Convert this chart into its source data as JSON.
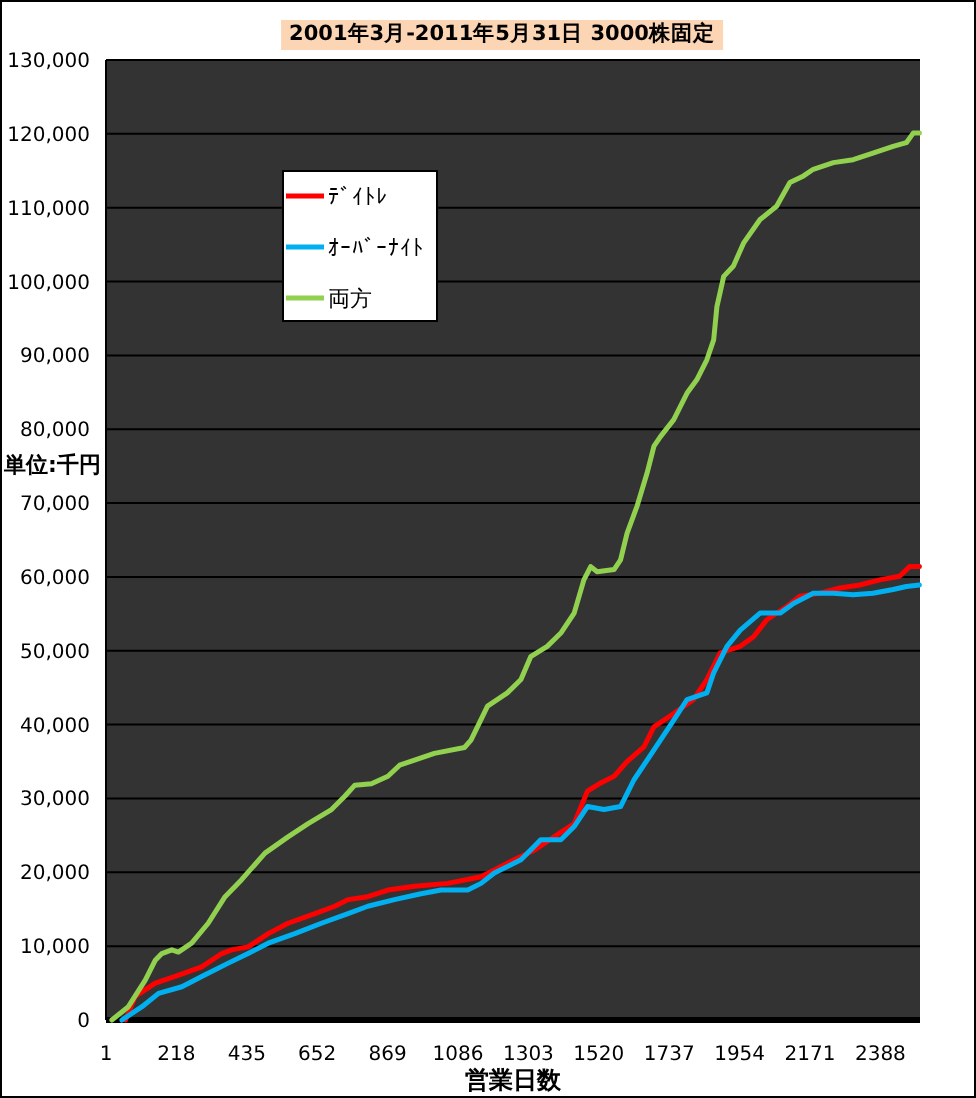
{
  "chart_data": {
    "type": "line",
    "title": "2001年3月-2011年5月31日 3000株固定",
    "xlabel": "営業日数",
    "ylabel": "単位:千円",
    "xlim": [
      1,
      2510
    ],
    "xticks": [
      1,
      218,
      435,
      652,
      869,
      1086,
      1303,
      1520,
      1737,
      1954,
      2171,
      2388
    ],
    "ylim": [
      0,
      130000
    ],
    "yticks": [
      0,
      {
        "value": 10000,
        "label": "10,000"
      },
      {
        "value": 20000,
        "label": "20,000"
      },
      {
        "value": 30000,
        "label": "30,000"
      },
      {
        "value": 40000,
        "label": "40,000"
      },
      {
        "value": 50000,
        "label": "50,000"
      },
      {
        "value": 60000,
        "label": "60,000"
      },
      {
        "value": 70000,
        "label": "70,000"
      },
      {
        "value": 80000,
        "label": "80,000"
      },
      {
        "value": 90000,
        "label": "90,000"
      },
      {
        "value": 100000,
        "label": "100,000"
      },
      {
        "value": 110000,
        "label": "110,000"
      },
      {
        "value": 120000,
        "label": "120,000"
      },
      {
        "value": 130000,
        "label": "130,000"
      }
    ],
    "grid": "y",
    "legend": "top left",
    "series": [
      {
        "name": "ﾃﾞｲﾄﾚ",
        "color": "#ff0000",
        "x": [
          61,
          91,
          153,
          214,
          296,
          358,
          388,
          439,
          501,
          562,
          645,
          706,
          747,
          808,
          870,
          952,
          1054,
          1157,
          1198,
          1259,
          1321,
          1382,
          1444,
          1485,
          1526,
          1567,
          1607,
          1659,
          1690,
          1751,
          1812,
          1853,
          1894,
          1956,
          1997,
          2038,
          2099,
          2140,
          2202,
          2263,
          2324,
          2386,
          2447,
          2478,
          2508
        ],
        "values": [
          0,
          3200,
          5000,
          5900,
          7200,
          9000,
          9500,
          9900,
          11700,
          13100,
          14400,
          15400,
          16300,
          16700,
          17600,
          18100,
          18500,
          19400,
          20300,
          21700,
          23000,
          24800,
          26600,
          31000,
          32100,
          33000,
          35000,
          37000,
          39700,
          41500,
          43400,
          46100,
          49700,
          50600,
          51900,
          54200,
          56000,
          57400,
          57800,
          58500,
          58900,
          59600,
          60100,
          61400,
          61400
        ]
      },
      {
        "name": "ｵｰﾊﾞｰﾅｲﾄ",
        "color": "#00b0f0",
        "x": [
          50,
          112,
          163,
          235,
          296,
          378,
          439,
          501,
          583,
          665,
          747,
          808,
          890,
          972,
          1034,
          1116,
          1157,
          1198,
          1280,
          1341,
          1403,
          1444,
          1485,
          1536,
          1587,
          1628,
          1669,
          1710,
          1751,
          1792,
          1853,
          1874,
          1915,
          1956,
          2017,
          2079,
          2120,
          2181,
          2243,
          2304,
          2365,
          2427,
          2468,
          2508
        ],
        "values": [
          0,
          1800,
          3600,
          4500,
          5900,
          7700,
          9000,
          10400,
          11700,
          13100,
          14400,
          15400,
          16300,
          17100,
          17600,
          17600,
          18500,
          19900,
          21700,
          24400,
          24400,
          26200,
          28900,
          28500,
          28900,
          32500,
          35200,
          37900,
          40600,
          43400,
          44300,
          47000,
          50600,
          52800,
          55100,
          55100,
          56400,
          57800,
          57800,
          57600,
          57800,
          58300,
          58700,
          58900
        ]
      },
      {
        "name": "両方",
        "color": "#92d050",
        "x": [
          19,
          70,
          122,
          153,
          173,
          204,
          224,
          265,
          316,
          368,
          419,
          491,
          562,
          624,
          696,
          737,
          768,
          819,
          870,
          906,
          952,
          1013,
          1106,
          1126,
          1177,
          1238,
          1280,
          1310,
          1361,
          1403,
          1444,
          1474,
          1495,
          1515,
          1567,
          1587,
          1607,
          1638,
          1669,
          1690,
          1710,
          1751,
          1792,
          1822,
          1853,
          1874,
          1884,
          1905,
          1935,
          1966,
          2017,
          2068,
          2109,
          2151,
          2181,
          2243,
          2304,
          2365,
          2427,
          2468,
          2489,
          2508
        ],
        "values": [
          0,
          1800,
          5400,
          8100,
          9000,
          9500,
          9200,
          10400,
          13100,
          16700,
          19000,
          22600,
          24800,
          26600,
          28500,
          30300,
          31800,
          32000,
          33000,
          34500,
          35200,
          36100,
          36900,
          37900,
          42500,
          44300,
          46100,
          49200,
          50600,
          52400,
          55100,
          59600,
          61400,
          60700,
          61000,
          62300,
          65900,
          69600,
          74100,
          77700,
          79000,
          81300,
          84900,
          86700,
          89400,
          92100,
          96600,
          100700,
          102100,
          105200,
          108400,
          110200,
          113400,
          114300,
          115200,
          116100,
          116500,
          117400,
          118300,
          118800,
          120100,
          120100
        ]
      }
    ]
  }
}
